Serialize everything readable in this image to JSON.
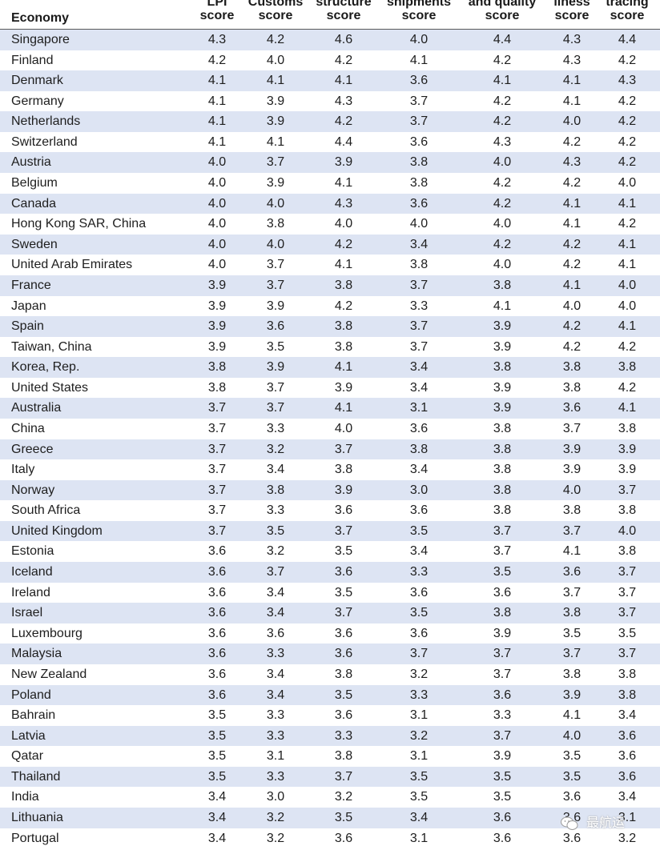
{
  "headers": {
    "economy": "Economy",
    "col1": [
      "LPI",
      "score"
    ],
    "col2": [
      "Customs",
      "score"
    ],
    "col3": [
      "structure",
      "score"
    ],
    "col4": [
      "shipments",
      "score"
    ],
    "col5": [
      "and quality",
      "score"
    ],
    "col6": [
      "liness",
      "score"
    ],
    "col7": [
      "tracing",
      "score"
    ]
  },
  "colors": {
    "band": "#dde4f3",
    "rule": "#5a5a5a"
  },
  "rows": [
    [
      "Singapore",
      "4.3",
      "4.2",
      "4.6",
      "4.0",
      "4.4",
      "4.3",
      "4.4"
    ],
    [
      "Finland",
      "4.2",
      "4.0",
      "4.2",
      "4.1",
      "4.2",
      "4.3",
      "4.2"
    ],
    [
      "Denmark",
      "4.1",
      "4.1",
      "4.1",
      "3.6",
      "4.1",
      "4.1",
      "4.3"
    ],
    [
      "Germany",
      "4.1",
      "3.9",
      "4.3",
      "3.7",
      "4.2",
      "4.1",
      "4.2"
    ],
    [
      "Netherlands",
      "4.1",
      "3.9",
      "4.2",
      "3.7",
      "4.2",
      "4.0",
      "4.2"
    ],
    [
      "Switzerland",
      "4.1",
      "4.1",
      "4.4",
      "3.6",
      "4.3",
      "4.2",
      "4.2"
    ],
    [
      "Austria",
      "4.0",
      "3.7",
      "3.9",
      "3.8",
      "4.0",
      "4.3",
      "4.2"
    ],
    [
      "Belgium",
      "4.0",
      "3.9",
      "4.1",
      "3.8",
      "4.2",
      "4.2",
      "4.0"
    ],
    [
      "Canada",
      "4.0",
      "4.0",
      "4.3",
      "3.6",
      "4.2",
      "4.1",
      "4.1"
    ],
    [
      "Hong Kong SAR, China",
      "4.0",
      "3.8",
      "4.0",
      "4.0",
      "4.0",
      "4.1",
      "4.2"
    ],
    [
      "Sweden",
      "4.0",
      "4.0",
      "4.2",
      "3.4",
      "4.2",
      "4.2",
      "4.1"
    ],
    [
      "United Arab Emirates",
      "4.0",
      "3.7",
      "4.1",
      "3.8",
      "4.0",
      "4.2",
      "4.1"
    ],
    [
      "France",
      "3.9",
      "3.7",
      "3.8",
      "3.7",
      "3.8",
      "4.1",
      "4.0"
    ],
    [
      "Japan",
      "3.9",
      "3.9",
      "4.2",
      "3.3",
      "4.1",
      "4.0",
      "4.0"
    ],
    [
      "Spain",
      "3.9",
      "3.6",
      "3.8",
      "3.7",
      "3.9",
      "4.2",
      "4.1"
    ],
    [
      "Taiwan, China",
      "3.9",
      "3.5",
      "3.8",
      "3.7",
      "3.9",
      "4.2",
      "4.2"
    ],
    [
      "Korea, Rep.",
      "3.8",
      "3.9",
      "4.1",
      "3.4",
      "3.8",
      "3.8",
      "3.8"
    ],
    [
      "United States",
      "3.8",
      "3.7",
      "3.9",
      "3.4",
      "3.9",
      "3.8",
      "4.2"
    ],
    [
      "Australia",
      "3.7",
      "3.7",
      "4.1",
      "3.1",
      "3.9",
      "3.6",
      "4.1"
    ],
    [
      "China",
      "3.7",
      "3.3",
      "4.0",
      "3.6",
      "3.8",
      "3.7",
      "3.8"
    ],
    [
      "Greece",
      "3.7",
      "3.2",
      "3.7",
      "3.8",
      "3.8",
      "3.9",
      "3.9"
    ],
    [
      "Italy",
      "3.7",
      "3.4",
      "3.8",
      "3.4",
      "3.8",
      "3.9",
      "3.9"
    ],
    [
      "Norway",
      "3.7",
      "3.8",
      "3.9",
      "3.0",
      "3.8",
      "4.0",
      "3.7"
    ],
    [
      "South Africa",
      "3.7",
      "3.3",
      "3.6",
      "3.6",
      "3.8",
      "3.8",
      "3.8"
    ],
    [
      "United Kingdom",
      "3.7",
      "3.5",
      "3.7",
      "3.5",
      "3.7",
      "3.7",
      "4.0"
    ],
    [
      "Estonia",
      "3.6",
      "3.2",
      "3.5",
      "3.4",
      "3.7",
      "4.1",
      "3.8"
    ],
    [
      "Iceland",
      "3.6",
      "3.7",
      "3.6",
      "3.3",
      "3.5",
      "3.6",
      "3.7"
    ],
    [
      "Ireland",
      "3.6",
      "3.4",
      "3.5",
      "3.6",
      "3.6",
      "3.7",
      "3.7"
    ],
    [
      "Israel",
      "3.6",
      "3.4",
      "3.7",
      "3.5",
      "3.8",
      "3.8",
      "3.7"
    ],
    [
      "Luxembourg",
      "3.6",
      "3.6",
      "3.6",
      "3.6",
      "3.9",
      "3.5",
      "3.5"
    ],
    [
      "Malaysia",
      "3.6",
      "3.3",
      "3.6",
      "3.7",
      "3.7",
      "3.7",
      "3.7"
    ],
    [
      "New Zealand",
      "3.6",
      "3.4",
      "3.8",
      "3.2",
      "3.7",
      "3.8",
      "3.8"
    ],
    [
      "Poland",
      "3.6",
      "3.4",
      "3.5",
      "3.3",
      "3.6",
      "3.9",
      "3.8"
    ],
    [
      "Bahrain",
      "3.5",
      "3.3",
      "3.6",
      "3.1",
      "3.3",
      "4.1",
      "3.4"
    ],
    [
      "Latvia",
      "3.5",
      "3.3",
      "3.3",
      "3.2",
      "3.7",
      "4.0",
      "3.6"
    ],
    [
      "Qatar",
      "3.5",
      "3.1",
      "3.8",
      "3.1",
      "3.9",
      "3.5",
      "3.6"
    ],
    [
      "Thailand",
      "3.5",
      "3.3",
      "3.7",
      "3.5",
      "3.5",
      "3.5",
      "3.6"
    ],
    [
      "India",
      "3.4",
      "3.0",
      "3.2",
      "3.5",
      "3.5",
      "3.6",
      "3.4"
    ],
    [
      "Lithuania",
      "3.4",
      "3.2",
      "3.5",
      "3.4",
      "3.6",
      "3.6",
      "3.1"
    ],
    [
      "Portugal",
      "3.4",
      "3.2",
      "3.6",
      "3.1",
      "3.6",
      "3.6",
      "3.2"
    ]
  ],
  "watermark": {
    "icon": "wechat-icon",
    "text": "最航运"
  }
}
